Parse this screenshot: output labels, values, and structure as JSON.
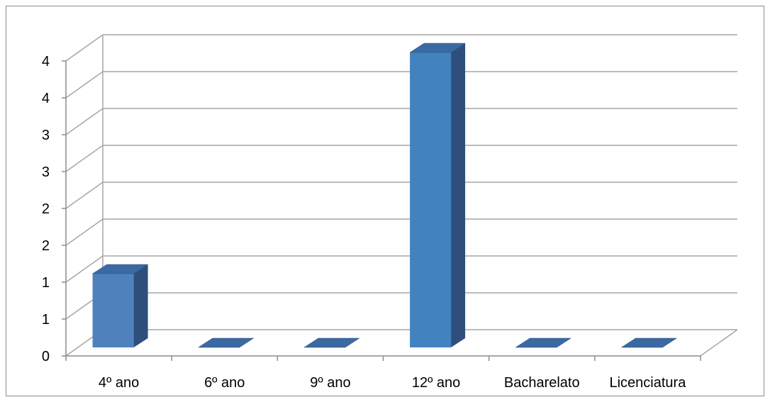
{
  "chart_data": {
    "type": "bar",
    "style": "3d-column",
    "categories": [
      "4º ano",
      "6º ano",
      "9º ano",
      "12º ano",
      "Bacharelato",
      "Licenciatura"
    ],
    "values": [
      1,
      0,
      0,
      4,
      0,
      0
    ],
    "ytick_labels": [
      "0",
      "1",
      "1",
      "2",
      "2",
      "3",
      "3",
      "4",
      "4"
    ],
    "ylim": [
      0,
      4
    ],
    "grid": true,
    "title": "",
    "xlabel": "",
    "ylabel": "",
    "colors": {
      "bar_front": "#4f81bd",
      "bar_front_highlight": "#4283bf",
      "bar_side": "#2e4f7c",
      "bar_top": "#3b6aa3",
      "gridline": "#a6a6a6",
      "axis": "#8c8c8c"
    }
  }
}
